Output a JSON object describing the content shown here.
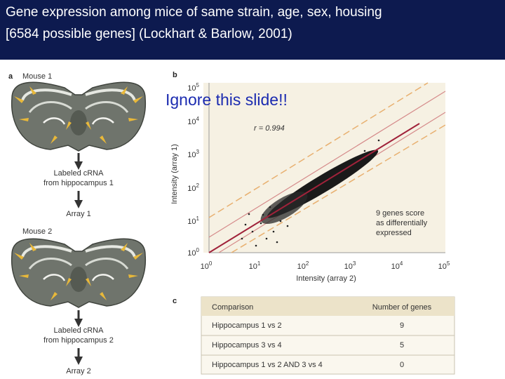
{
  "header": {
    "title_lines": [
      "Gene expression among mice of same strain, age, sex, housing",
      "[6584 possible genes] (Lockhart & Barlow, 2001)"
    ]
  },
  "overlay_note": "Ignore this slide!!",
  "panel_a": {
    "label": "a",
    "mouse_1": "Mouse 1",
    "crna_1": [
      "Labeled cRNA",
      "from hippocampus 1"
    ],
    "array_1": "Array 1",
    "mouse_2": "Mouse 2",
    "crna_2": [
      "Labeled cRNA",
      "from hippocampus 2"
    ],
    "array_2": "Array 2"
  },
  "panel_b": {
    "label": "b",
    "y_label": "Intensity (array 1)",
    "x_label": "Intensity (array 2)",
    "correlation": "r = 0.994",
    "annotation": [
      "9 genes score",
      "as differentially",
      "expressed"
    ],
    "x_ticks": [
      {
        "base": "10",
        "exp": "0"
      },
      {
        "base": "10",
        "exp": "1"
      },
      {
        "base": "10",
        "exp": "2"
      },
      {
        "base": "10",
        "exp": "3"
      },
      {
        "base": "10",
        "exp": "4"
      },
      {
        "base": "10",
        "exp": "5"
      }
    ],
    "y_ticks": [
      {
        "base": "10",
        "exp": "0"
      },
      {
        "base": "10",
        "exp": "1"
      },
      {
        "base": "10",
        "exp": "2"
      },
      {
        "base": "10",
        "exp": "3"
      },
      {
        "base": "10",
        "exp": "4"
      },
      {
        "base": "10",
        "exp": "5"
      }
    ]
  },
  "panel_c": {
    "label": "c",
    "header": [
      "Comparison",
      "Number of genes"
    ],
    "rows": [
      [
        "Hippocampus 1 vs 2",
        "9"
      ],
      [
        "Hippocampus 3 vs 4",
        "5"
      ],
      [
        "Hippocampus 1 vs 2 AND 3 vs 4",
        "0"
      ]
    ]
  }
}
